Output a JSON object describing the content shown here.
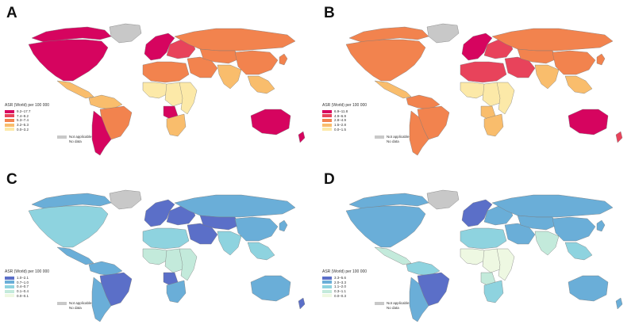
{
  "figure": {
    "panels": [
      {
        "letter": "A",
        "legend_title": "ASR (World) per 100 000",
        "legend_items": [
          "9.2–17.7",
          "7.4–9.2",
          "5.3–7.4",
          "3.2–5.3",
          "0.0–3.2"
        ],
        "legend_colors": [
          "#d6045f",
          "#e8435b",
          "#f2834e",
          "#f9bd6c",
          "#fce9a8"
        ],
        "na_labels": [
          "Not applicable",
          "No data"
        ],
        "region_classes": {
          "northAmerica": 0,
          "canadaNorth": 0,
          "greenland": "na",
          "centralAmerica": 3,
          "southAmericaNorth": 3,
          "brazil": 2,
          "southernCone": 0,
          "westernEurope": 0,
          "easternEurope": 1,
          "russia": 2,
          "northAfrica": 2,
          "westAfrica": 4,
          "centralAfrica": 4,
          "angola": 0,
          "southAfrica": 3,
          "eastAfrica": 4,
          "middleEast": 2,
          "centralAsia": 2,
          "southAsia": 3,
          "china": 2,
          "southeastAsia": 3,
          "japan": 2,
          "australia": 0,
          "newZealand": 0
        }
      },
      {
        "letter": "B",
        "legend_title": "ASR (World) per 100 000",
        "legend_items": [
          "6.9–11.8",
          "4.9–6.9",
          "2.8–4.9",
          "1.5–2.8",
          "0.0–1.5"
        ],
        "legend_colors": [
          "#d6045f",
          "#e8435b",
          "#f2834e",
          "#f9bd6c",
          "#fce9a8"
        ],
        "na_labels": [
          "Not applicable",
          "No data"
        ],
        "region_classes": {
          "northAmerica": 2,
          "canadaNorth": 2,
          "greenland": "na",
          "centralAmerica": 3,
          "southAmericaNorth": 2,
          "brazil": 2,
          "southernCone": 2,
          "westernEurope": 0,
          "easternEurope": 1,
          "russia": 2,
          "northAfrica": 1,
          "westAfrica": 4,
          "centralAfrica": 4,
          "angola": 3,
          "southAfrica": 3,
          "eastAfrica": 4,
          "middleEast": 1,
          "centralAsia": 2,
          "southAsia": 3,
          "china": 2,
          "southeastAsia": 3,
          "japan": 2,
          "australia": 0,
          "newZealand": 1
        }
      },
      {
        "letter": "C",
        "legend_title": "ASR (World) per 100 000",
        "legend_items": [
          "1.0–2.1",
          "0.7–1.0",
          "0.4–0.7",
          "0.1–0.4",
          "0.0–0.1"
        ],
        "legend_colors": [
          "#5b6fc8",
          "#6aaed8",
          "#8ed3df",
          "#c3eadb",
          "#eef8e2"
        ],
        "na_labels": [
          "Not applicable",
          "No data"
        ],
        "region_classes": {
          "northAmerica": 2,
          "canadaNorth": 1,
          "greenland": "na",
          "centralAmerica": 1,
          "southAmericaNorth": 1,
          "brazil": 0,
          "southernCone": 1,
          "westernEurope": 0,
          "easternEurope": 0,
          "russia": 1,
          "northAfrica": 2,
          "westAfrica": 3,
          "centralAfrica": 3,
          "angola": 0,
          "southAfrica": 1,
          "eastAfrica": 3,
          "middleEast": 0,
          "centralAsia": 0,
          "southAsia": 2,
          "china": 1,
          "southeastAsia": 2,
          "japan": 1,
          "australia": 1,
          "newZealand": 0
        }
      },
      {
        "letter": "D",
        "legend_title": "ASR (World) per 100 000",
        "legend_items": [
          "3.3–5.6",
          "2.0–3.3",
          "1.1–2.0",
          "0.3–1.1",
          "0.0–0.3"
        ],
        "legend_colors": [
          "#5b6fc8",
          "#6aaed8",
          "#8ed3df",
          "#c3eadb",
          "#eef8e2"
        ],
        "na_labels": [
          "Not applicable",
          "No data"
        ],
        "region_classes": {
          "northAmerica": 1,
          "canadaNorth": 1,
          "greenland": "na",
          "centralAmerica": 3,
          "southAmericaNorth": 2,
          "brazil": 0,
          "southernCone": 1,
          "westernEurope": 0,
          "easternEurope": 1,
          "russia": 1,
          "northAfrica": 2,
          "westAfrica": 4,
          "centralAfrica": 4,
          "angola": 3,
          "southAfrica": 2,
          "eastAfrica": 4,
          "middleEast": 1,
          "centralAsia": 1,
          "southAsia": 3,
          "china": 1,
          "southeastAsia": 2,
          "japan": 1,
          "australia": 1,
          "newZealand": 1
        }
      }
    ],
    "na_colors": {
      "not_applicable": "#c8c8c8",
      "no_data": "#ffffff"
    },
    "map_border_color": "#7a7a7a"
  }
}
